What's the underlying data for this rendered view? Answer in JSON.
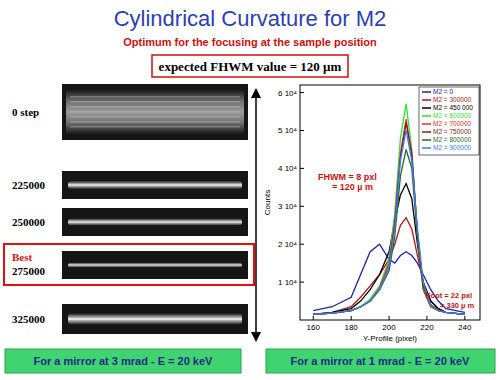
{
  "slide": {
    "title": "Cylindrical Curvature for M2",
    "subtitle": "Optimum for the focusing at the sample position",
    "expected": "expected FHWM value = 120 µm",
    "beam_images": [
      {
        "label": "0 step"
      },
      {
        "label": "225000"
      },
      {
        "label": "250000"
      },
      {
        "label": "275000",
        "tag": "Best"
      },
      {
        "label": "325000"
      }
    ],
    "left_caption": "For a mirror at 3 mrad - E = 20 keV",
    "right_caption": "For a mirror at 1 mrad - E = 20 keV"
  },
  "chart_data": {
    "type": "line",
    "x_label": "Y-Profile (pixel)",
    "y_label": "Counts",
    "x": [
      160,
      170,
      180,
      185,
      190,
      195,
      200,
      203,
      206,
      209,
      212,
      215,
      218,
      222,
      226,
      230,
      240
    ],
    "series": [
      {
        "name": "M2 = 0",
        "color": "#2020b0",
        "values": [
          2500,
          3500,
          6000,
          12000,
          18000,
          20000,
          16000,
          15000,
          17000,
          18000,
          17000,
          15000,
          12000,
          8000,
          5000,
          3000,
          2000
        ]
      },
      {
        "name": "M2 = 300000",
        "color": "#b01818",
        "values": [
          1500,
          2000,
          3500,
          6000,
          9000,
          12000,
          16000,
          20000,
          25000,
          27000,
          24000,
          17000,
          10000,
          5000,
          3000,
          2000,
          1500
        ]
      },
      {
        "name": "M2 = 450 000",
        "color": "#000000",
        "values": [
          1500,
          2000,
          3000,
          5000,
          8000,
          12000,
          18000,
          26000,
          33000,
          36000,
          32000,
          20000,
          10000,
          5000,
          3000,
          2000,
          1500
        ]
      },
      {
        "name": "M2 = 600000",
        "color": "#33dd33",
        "values": [
          1500,
          1800,
          2500,
          3500,
          5500,
          9000,
          16000,
          28000,
          48000,
          57000,
          45000,
          22000,
          8000,
          3500,
          2500,
          2000,
          1500
        ]
      },
      {
        "name": "M2 = 700000",
        "color": "#e03030",
        "values": [
          1500,
          1800,
          2500,
          3500,
          5000,
          8500,
          15000,
          26000,
          44000,
          53000,
          43000,
          22000,
          8000,
          3500,
          2500,
          2000,
          1500
        ]
      },
      {
        "name": "M2 = 750000",
        "color": "#8b1a1a",
        "values": [
          1500,
          1800,
          2500,
          3500,
          5000,
          8000,
          14000,
          25000,
          43000,
          52000,
          44000,
          23000,
          9000,
          4000,
          2500,
          2000,
          1500
        ]
      },
      {
        "name": "M2 = 800000",
        "color": "#1f6b2a",
        "values": [
          1500,
          1800,
          2500,
          3500,
          5000,
          8000,
          13000,
          22000,
          38000,
          45000,
          40000,
          22000,
          9000,
          4000,
          2500,
          2000,
          1500
        ]
      },
      {
        "name": "M2 = 900000",
        "color": "#3a7bff",
        "values": [
          1500,
          1800,
          2500,
          3500,
          5000,
          8000,
          14000,
          24000,
          42000,
          50000,
          42000,
          24000,
          10000,
          4000,
          2500,
          2000,
          1500
        ]
      }
    ],
    "xlim": [
      153,
      248
    ],
    "ylim": [
      0,
      62000
    ],
    "xticks": [
      160,
      180,
      200,
      220,
      240
    ],
    "yticks": [
      {
        "value": 10000,
        "label": "1 10⁴"
      },
      {
        "value": 20000,
        "label": "2 10⁴"
      },
      {
        "value": 30000,
        "label": "3 10⁴"
      },
      {
        "value": 40000,
        "label": "4 10⁴"
      },
      {
        "value": 50000,
        "label": "5 10⁴"
      },
      {
        "value": 60000,
        "label": "6 10⁴"
      }
    ],
    "legend": "top-right",
    "annotations": [
      {
        "lines": [
          "FHWM = 8 pxl",
          "= 120 µ m"
        ]
      },
      {
        "lines": [
          "Foot = 22 pxl",
          "= 330 µ m"
        ]
      }
    ]
  }
}
